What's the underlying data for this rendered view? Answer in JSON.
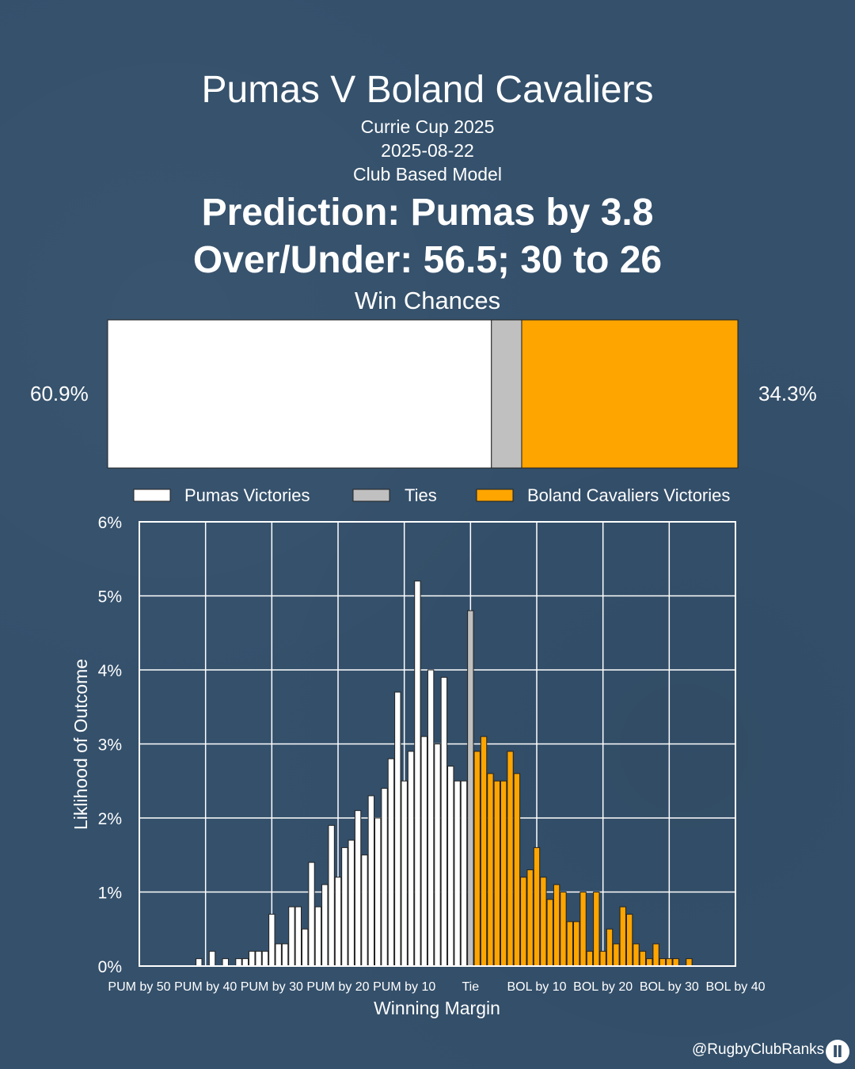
{
  "header": {
    "title": "Pumas V Boland Cavaliers",
    "competition": "Currie Cup 2025",
    "date": "2025-08-22",
    "model": "Club Based Model",
    "prediction": "Prediction: Pumas by 3.8",
    "over_under": "Over/Under: 56.5; 30 to 26"
  },
  "win_chances": {
    "label": "Win Chances",
    "pumas_pct": "60.9%",
    "boland_pct": "34.3%",
    "pumas": 60.9,
    "ties": 4.8,
    "boland": 34.3
  },
  "legend": {
    "pumas": "Pumas Victories",
    "ties": "Ties",
    "boland": "Boland Cavaliers Victories"
  },
  "colors": {
    "pumas": "#ffffff",
    "ties": "#c0c0c0",
    "boland": "#ffa500",
    "background": "#34506b"
  },
  "chart_data": {
    "type": "bar",
    "title": "",
    "xlabel": "Winning Margin",
    "ylabel": "Liklihood of Outcome",
    "xlim": [
      -50,
      40
    ],
    "ylim": [
      0,
      6
    ],
    "y_ticks": [
      "0%",
      "1%",
      "2%",
      "3%",
      "4%",
      "5%",
      "6%"
    ],
    "x_ticks": [
      {
        "x": -50,
        "label": "PUM by 50"
      },
      {
        "x": -40,
        "label": "PUM by 40"
      },
      {
        "x": -30,
        "label": "PUM by 30"
      },
      {
        "x": -20,
        "label": "PUM by 20"
      },
      {
        "x": -10,
        "label": "PUM by 10"
      },
      {
        "x": 0,
        "label": "Tie"
      },
      {
        "x": 10,
        "label": "BOL by 10"
      },
      {
        "x": 20,
        "label": "BOL by 20"
      },
      {
        "x": 30,
        "label": "BOL by 30"
      },
      {
        "x": 40,
        "label": "BOL by 40"
      }
    ],
    "series": [
      {
        "name": "Pumas Victories",
        "x": [
          -41,
          -39,
          -37,
          -35,
          -34,
          -33,
          -32,
          -31,
          -30,
          -29,
          -28,
          -27,
          -26,
          -25,
          -24,
          -23,
          -22,
          -21,
          -20,
          -19,
          -18,
          -17,
          -16,
          -15,
          -14,
          -13,
          -12,
          -11,
          -10,
          -9,
          -8,
          -7,
          -6,
          -5,
          -4,
          -3,
          -2,
          -1
        ],
        "values": [
          0.1,
          0.2,
          0.1,
          0.1,
          0.1,
          0.2,
          0.2,
          0.2,
          0.7,
          0.3,
          0.3,
          0.8,
          0.8,
          0.5,
          1.4,
          0.8,
          1.1,
          1.9,
          1.2,
          1.6,
          1.7,
          2.1,
          1.5,
          2.3,
          2.0,
          2.4,
          2.8,
          3.7,
          2.5,
          2.9,
          5.2,
          3.1,
          4.0,
          3.0,
          3.9,
          2.7,
          2.5,
          2.5
        ]
      },
      {
        "name": "Ties",
        "x": [
          0
        ],
        "values": [
          4.8
        ]
      },
      {
        "name": "Boland Cavaliers Victories",
        "x": [
          1,
          2,
          3,
          4,
          5,
          6,
          7,
          8,
          9,
          10,
          11,
          12,
          13,
          14,
          15,
          16,
          17,
          18,
          19,
          20,
          21,
          22,
          23,
          24,
          25,
          26,
          27,
          28,
          29,
          30,
          31,
          33
        ],
        "values": [
          2.9,
          3.1,
          2.6,
          2.5,
          2.5,
          2.9,
          2.6,
          1.2,
          1.3,
          1.6,
          1.2,
          0.9,
          1.1,
          1.0,
          0.6,
          0.6,
          1.0,
          0.2,
          1.0,
          0.2,
          0.5,
          0.3,
          0.8,
          0.7,
          0.3,
          0.2,
          0.1,
          0.3,
          0.1,
          0.1,
          0.1,
          0.1
        ]
      }
    ]
  },
  "footer": {
    "handle": "@RugbyClubRanks"
  }
}
